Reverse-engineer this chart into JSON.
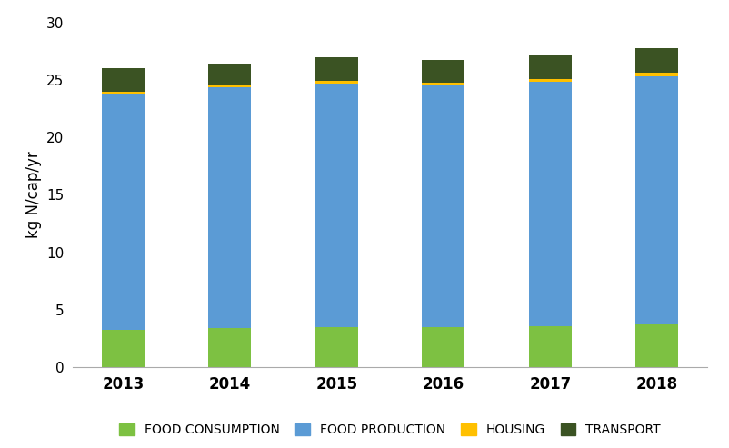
{
  "years": [
    "2013",
    "2014",
    "2015",
    "2016",
    "2017",
    "2018"
  ],
  "food_consumption": [
    3.3,
    3.4,
    3.5,
    3.5,
    3.6,
    3.7
  ],
  "food_production": [
    20.5,
    21.0,
    21.2,
    21.0,
    21.2,
    21.6
  ],
  "housing": [
    0.2,
    0.2,
    0.25,
    0.25,
    0.25,
    0.35
  ],
  "transport": [
    2.0,
    1.8,
    2.05,
    1.95,
    2.05,
    2.1
  ],
  "colors": {
    "food_consumption": "#7DC142",
    "food_production": "#5B9BD5",
    "housing": "#FFC000",
    "transport": "#3B5323"
  },
  "ylabel": "kg N/cap/yr",
  "ylim": [
    0,
    30
  ],
  "yticks": [
    0,
    5,
    10,
    15,
    20,
    25,
    30
  ],
  "legend_labels": [
    "FOOD CONSUMPTION",
    "FOOD PRODUCTION",
    "HOUSING",
    "TRANSPORT"
  ],
  "bar_width": 0.4,
  "figsize": [
    8.02,
    4.93
  ],
  "dpi": 100
}
